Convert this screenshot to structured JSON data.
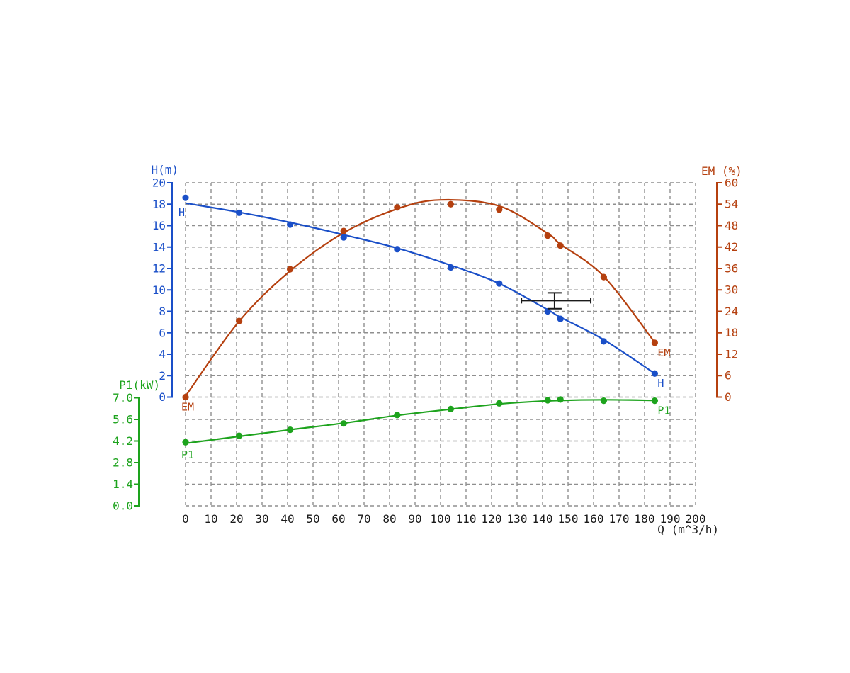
{
  "chart_data": {
    "type": "line",
    "title": "",
    "x_axis": {
      "title": "Q (m^3/h)",
      "min": 0,
      "max": 200,
      "tick_step": 10,
      "ticks": [
        "0",
        "10",
        "20",
        "30",
        "40",
        "50",
        "60",
        "70",
        "80",
        "90",
        "100",
        "110",
        "120",
        "130",
        "140",
        "150",
        "160",
        "170",
        "180",
        "190",
        "200"
      ],
      "color": "#1a1a1a"
    },
    "axes": {
      "h": {
        "title": "H(m)",
        "side": "left",
        "min": 0,
        "max": 20,
        "tick_step": 2,
        "ticks": [
          "20",
          "18",
          "16",
          "14",
          "12",
          "10",
          "8",
          "6",
          "4",
          "2",
          "0"
        ],
        "color": "#1a4fc8"
      },
      "em": {
        "title": "EM (%)",
        "side": "right",
        "min": 0,
        "max": 60,
        "tick_step": 6,
        "ticks": [
          "60",
          "54",
          "48",
          "42",
          "36",
          "30",
          "24",
          "18",
          "12",
          "6",
          "0"
        ],
        "color": "#b5400f"
      },
      "p1": {
        "title": "P1(kW)",
        "side": "left-lower",
        "min": 0,
        "max": 7,
        "tick_step": 1.4,
        "ticks": [
          "7.0",
          "5.6",
          "4.2",
          "2.8",
          "1.4",
          "0.0"
        ],
        "color": "#1da31d"
      }
    },
    "series": [
      {
        "name": "H",
        "axis": "h",
        "color": "#1a4fc8",
        "start_label": "H",
        "end_label": "H",
        "points": [
          [
            0,
            18.6
          ],
          [
            21,
            17.2
          ],
          [
            41,
            16.1
          ],
          [
            62,
            14.9
          ],
          [
            83,
            13.8
          ],
          [
            104,
            12.1
          ],
          [
            123,
            10.6
          ],
          [
            142,
            8.0
          ],
          [
            147,
            7.3
          ],
          [
            164,
            5.2
          ],
          [
            184,
            2.2
          ]
        ],
        "curve": [
          [
            0,
            18.1
          ],
          [
            21,
            17.25
          ],
          [
            41,
            16.3
          ],
          [
            62,
            15.15
          ],
          [
            83,
            13.9
          ],
          [
            104,
            12.3
          ],
          [
            123,
            10.6
          ],
          [
            142,
            8.15
          ],
          [
            147,
            7.45
          ],
          [
            164,
            5.35
          ],
          [
            184,
            2.2
          ]
        ]
      },
      {
        "name": "EM",
        "axis": "em",
        "color": "#b5400f",
        "start_label": "EM",
        "end_label": "EM",
        "points": [
          [
            0,
            0
          ],
          [
            21,
            21.3
          ],
          [
            41,
            35.8
          ],
          [
            62,
            46.5
          ],
          [
            83,
            53.1
          ],
          [
            104,
            54.0
          ],
          [
            123,
            52.5
          ],
          [
            142,
            45.2
          ],
          [
            147,
            42.4
          ],
          [
            164,
            33.6
          ],
          [
            184,
            15.2
          ]
        ],
        "curve": [
          [
            0,
            0.3
          ],
          [
            21,
            21.2
          ],
          [
            41,
            35.3
          ],
          [
            62,
            46.0
          ],
          [
            83,
            52.7
          ],
          [
            100,
            55.2
          ],
          [
            123,
            53.5
          ],
          [
            142,
            45.8
          ],
          [
            147,
            42.8
          ],
          [
            164,
            33.8
          ],
          [
            184,
            15.3
          ]
        ]
      },
      {
        "name": "P1",
        "axis": "p1",
        "color": "#1da31d",
        "start_label": "P1",
        "end_label": "P1",
        "points": [
          [
            0,
            4.12
          ],
          [
            21,
            4.54
          ],
          [
            41,
            4.93
          ],
          [
            62,
            5.34
          ],
          [
            83,
            5.88
          ],
          [
            104,
            6.27
          ],
          [
            123,
            6.64
          ],
          [
            142,
            6.84
          ],
          [
            147,
            6.89
          ],
          [
            164,
            6.81
          ],
          [
            184,
            6.81
          ]
        ],
        "curve": [
          [
            0,
            4.05
          ],
          [
            21,
            4.5
          ],
          [
            41,
            4.93
          ],
          [
            62,
            5.36
          ],
          [
            83,
            5.86
          ],
          [
            104,
            6.26
          ],
          [
            123,
            6.6
          ],
          [
            142,
            6.8
          ],
          [
            164,
            6.87
          ],
          [
            184,
            6.83
          ]
        ]
      }
    ],
    "duty_marker": {
      "q_min": 131.7,
      "q_max": 158.9,
      "q_center": 144.7,
      "h_center": 9.0,
      "h_min": 8.25,
      "h_max": 9.73,
      "color": "#1a1a1a"
    },
    "grid": {
      "x_step_q": 10,
      "color": "#8f8f8f",
      "dash": "5 4"
    }
  }
}
